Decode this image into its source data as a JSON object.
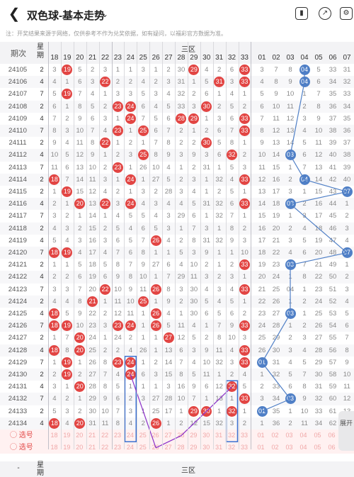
{
  "header": {
    "title": "双色球-基本走势",
    "back_icon": "chevron-left-icon",
    "dropdown_icon": "chevron-down-icon",
    "icons": [
      "phone-icon",
      "share-icon",
      "settings-icon"
    ]
  },
  "notice": "注：开奖结果来源于网络，仅供参考不作为兑奖依据，如有疑问，以福彩官方数据为准。",
  "table_header": {
    "issue": "期次",
    "week": "星期",
    "zone_label": "三区",
    "cols_red": [
      "18",
      "19",
      "20",
      "21",
      "22",
      "23",
      "24",
      "25",
      "26",
      "27",
      "28",
      "29",
      "30",
      "31",
      "32",
      "33"
    ],
    "cols_blue": [
      "01",
      "02",
      "03",
      "04",
      "05",
      "06",
      "07"
    ]
  },
  "rows": [
    {
      "issue": "24105",
      "week": "2",
      "cells": [
        "3",
        "19",
        "5",
        "2",
        "3",
        "1",
        "1",
        "3",
        "1",
        "2",
        "30",
        "29",
        "4",
        "2",
        "6",
        "33"
      ],
      "blue": [
        "3",
        "7",
        "8",
        "04",
        "5",
        "33",
        "31"
      ]
    },
    {
      "issue": "24106",
      "week": "4",
      "cells": [
        "4",
        "1",
        "6",
        "3",
        "22",
        "2",
        "2",
        "4",
        "2",
        "3",
        "31",
        "1",
        "5",
        "31",
        "3",
        "33"
      ],
      "blue": [
        "4",
        "8",
        "9",
        "04",
        "6",
        "34",
        "32"
      ]
    },
    {
      "issue": "24107",
      "week": "7",
      "cells": [
        "5",
        "19",
        "7",
        "4",
        "1",
        "3",
        "3",
        "5",
        "3",
        "4",
        "32",
        "2",
        "6",
        "1",
        "4",
        "1"
      ],
      "blue": [
        "5",
        "9",
        "10",
        "1",
        "7",
        "35",
        "33"
      ]
    },
    {
      "issue": "24108",
      "week": "2",
      "cells": [
        "6",
        "1",
        "8",
        "5",
        "2",
        "23",
        "24",
        "6",
        "4",
        "5",
        "33",
        "3",
        "30",
        "2",
        "5",
        "2"
      ],
      "blue": [
        "6",
        "10",
        "11",
        "2",
        "8",
        "36",
        "34"
      ]
    },
    {
      "issue": "24109",
      "week": "4",
      "cells": [
        "7",
        "2",
        "9",
        "6",
        "3",
        "1",
        "24",
        "7",
        "5",
        "6",
        "28",
        "29",
        "1",
        "3",
        "6",
        "33"
      ],
      "blue": [
        "7",
        "11",
        "12",
        "3",
        "9",
        "37",
        "35"
      ]
    },
    {
      "issue": "24110",
      "week": "7",
      "cells": [
        "8",
        "3",
        "10",
        "7",
        "4",
        "23",
        "1",
        "25",
        "6",
        "7",
        "2",
        "1",
        "2",
        "6",
        "7",
        "33"
      ],
      "blue": [
        "8",
        "12",
        "13",
        "4",
        "10",
        "38",
        "36"
      ]
    },
    {
      "issue": "24111",
      "week": "2",
      "cells": [
        "9",
        "4",
        "11",
        "8",
        "22",
        "1",
        "2",
        "1",
        "7",
        "8",
        "2",
        "2",
        "30",
        "5",
        "8",
        "1"
      ],
      "blue": [
        "9",
        "13",
        "14",
        "5",
        "11",
        "39",
        "37"
      ]
    },
    {
      "issue": "24112",
      "week": "4",
      "cells": [
        "10",
        "5",
        "12",
        "9",
        "1",
        "2",
        "3",
        "25",
        "8",
        "9",
        "3",
        "9",
        "3",
        "6",
        "32",
        "2"
      ],
      "blue": [
        "10",
        "14",
        "03",
        "6",
        "12",
        "40",
        "38"
      ]
    },
    {
      "issue": "24113",
      "week": "7",
      "cells": [
        "11",
        "6",
        "13",
        "10",
        "2",
        "23",
        "1",
        "26",
        "10",
        "4",
        "1",
        "2",
        "31",
        "1",
        "5",
        "3"
      ],
      "blue": [
        "11",
        "15",
        "1",
        "7",
        "13",
        "41",
        "39"
      ]
    },
    {
      "issue": "24114",
      "week": "2",
      "cells": [
        "18",
        "7",
        "14",
        "11",
        "3",
        "1",
        "24",
        "1",
        "27",
        "5",
        "2",
        "3",
        "1",
        "32",
        "4",
        "33"
      ],
      "blue": [
        "12",
        "16",
        "2",
        "04",
        "14",
        "42",
        "40"
      ]
    },
    {
      "issue": "24115",
      "week": "2",
      "cells": [
        "1",
        "19",
        "15",
        "12",
        "4",
        "2",
        "1",
        "3",
        "2",
        "28",
        "3",
        "4",
        "1",
        "2",
        "5",
        "1"
      ],
      "blue": [
        "13",
        "17",
        "3",
        "1",
        "15",
        "43",
        "07"
      ]
    },
    {
      "issue": "24116",
      "week": "4",
      "cells": [
        "2",
        "1",
        "20",
        "13",
        "22",
        "3",
        "24",
        "4",
        "3",
        "4",
        "4",
        "5",
        "31",
        "32",
        "6",
        "33"
      ],
      "blue": [
        "14",
        "18",
        "03",
        "2",
        "16",
        "44",
        "1"
      ]
    },
    {
      "issue": "24117",
      "week": "7",
      "cells": [
        "3",
        "2",
        "1",
        "14",
        "1",
        "4",
        "5",
        "5",
        "4",
        "3",
        "29",
        "6",
        "1",
        "32",
        "7",
        "1"
      ],
      "blue": [
        "15",
        "19",
        "1",
        "3",
        "17",
        "45",
        "2"
      ]
    },
    {
      "issue": "24118",
      "week": "2",
      "cells": [
        "4",
        "3",
        "2",
        "15",
        "2",
        "5",
        "4",
        "6",
        "5",
        "3",
        "1",
        "7",
        "3",
        "1",
        "8",
        "2"
      ],
      "blue": [
        "16",
        "20",
        "2",
        "4",
        "18",
        "46",
        "3"
      ]
    },
    {
      "issue": "24119",
      "week": "4",
      "cells": [
        "5",
        "4",
        "3",
        "16",
        "3",
        "6",
        "5",
        "7",
        "26",
        "4",
        "2",
        "8",
        "31",
        "32",
        "9",
        "3"
      ],
      "blue": [
        "17",
        "21",
        "3",
        "5",
        "19",
        "47",
        "4"
      ]
    },
    {
      "issue": "24120",
      "week": "7",
      "cells": [
        "18",
        "19",
        "4",
        "17",
        "4",
        "7",
        "6",
        "8",
        "1",
        "1",
        "5",
        "3",
        "9",
        "1",
        "1",
        "10"
      ],
      "blue": [
        "18",
        "22",
        "4",
        "6",
        "20",
        "48",
        "07"
      ]
    },
    {
      "issue": "24121",
      "week": "2",
      "cells": [
        "1",
        "1",
        "5",
        "18",
        "5",
        "8",
        "7",
        "9",
        "27",
        "6",
        "4",
        "10",
        "2",
        "1",
        "2",
        "33"
      ],
      "blue": [
        "19",
        "23",
        "03",
        "7",
        "21",
        "49",
        "1"
      ]
    },
    {
      "issue": "24122",
      "week": "4",
      "cells": [
        "2",
        "2",
        "6",
        "19",
        "6",
        "9",
        "8",
        "10",
        "1",
        "7",
        "29",
        "11",
        "3",
        "2",
        "3",
        "1"
      ],
      "blue": [
        "20",
        "24",
        "1",
        "8",
        "22",
        "50",
        "2"
      ]
    },
    {
      "issue": "24123",
      "week": "7",
      "cells": [
        "3",
        "3",
        "7",
        "20",
        "22",
        "10",
        "9",
        "11",
        "26",
        "8",
        "3",
        "30",
        "4",
        "3",
        "4",
        "33"
      ],
      "blue": [
        "21",
        "25",
        "04",
        "1",
        "23",
        "51",
        "3"
      ]
    },
    {
      "issue": "24124",
      "week": "2",
      "cells": [
        "4",
        "4",
        "8",
        "21",
        "1",
        "11",
        "10",
        "25",
        "1",
        "9",
        "2",
        "30",
        "5",
        "4",
        "5",
        "1"
      ],
      "blue": [
        "22",
        "26",
        "1",
        "2",
        "24",
        "52",
        "4"
      ]
    },
    {
      "issue": "24125",
      "week": "4",
      "cells": [
        "18",
        "5",
        "9",
        "22",
        "2",
        "12",
        "11",
        "1",
        "26",
        "4",
        "1",
        "30",
        "6",
        "5",
        "6",
        "2"
      ],
      "blue": [
        "23",
        "27",
        "03",
        "1",
        "25",
        "53",
        "5"
      ]
    },
    {
      "issue": "24126",
      "week": "7",
      "cells": [
        "18",
        "19",
        "10",
        "23",
        "3",
        "23",
        "24",
        "1",
        "26",
        "5",
        "11",
        "4",
        "1",
        "7",
        "9",
        "33"
      ],
      "blue": [
        "24",
        "28",
        "1",
        "2",
        "26",
        "54",
        "6"
      ]
    },
    {
      "issue": "24127",
      "week": "2",
      "cells": [
        "1",
        "7",
        "20",
        "24",
        "1",
        "24",
        "2",
        "1",
        "1",
        "27",
        "12",
        "5",
        "2",
        "8",
        "10",
        "3"
      ],
      "blue": [
        "25",
        "29",
        "2",
        "3",
        "27",
        "55",
        "7"
      ]
    },
    {
      "issue": "24128",
      "week": "4",
      "cells": [
        "18",
        "8",
        "20",
        "25",
        "2",
        "2",
        "4",
        "26",
        "1",
        "13",
        "6",
        "3",
        "9",
        "11",
        "4",
        "33"
      ],
      "blue": [
        "26",
        "30",
        "3",
        "4",
        "28",
        "56",
        "8"
      ]
    },
    {
      "issue": "24129",
      "week": "7",
      "cells": [
        "1",
        "19",
        "1",
        "26",
        "8",
        "23",
        "24",
        "1",
        "2",
        "14",
        "7",
        "4",
        "10",
        "32",
        "3",
        "33"
      ],
      "blue": [
        "01",
        "31",
        "4",
        "5",
        "29",
        "57",
        "9"
      ]
    },
    {
      "issue": "24130",
      "week": "2",
      "cells": [
        "2",
        "19",
        "2",
        "27",
        "7",
        "4",
        "24",
        "6",
        "3",
        "15",
        "8",
        "5",
        "11",
        "1",
        "2",
        "4"
      ],
      "blue": [
        "1",
        "32",
        "5",
        "7",
        "30",
        "58",
        "10"
      ]
    },
    {
      "issue": "24131",
      "week": "4",
      "cells": [
        "3",
        "1",
        "20",
        "28",
        "8",
        "5",
        "1",
        "1",
        "1",
        "3",
        "16",
        "9",
        "6",
        "12",
        "32",
        "5"
      ],
      "blue": [
        "2",
        "33",
        "6",
        "8",
        "31",
        "59",
        "11"
      ]
    },
    {
      "issue": "24132",
      "week": "7",
      "cells": [
        "4",
        "2",
        "1",
        "29",
        "9",
        "6",
        "2",
        "3",
        "27",
        "28",
        "10",
        "7",
        "1",
        "13",
        "1",
        "33"
      ],
      "blue": [
        "3",
        "34",
        "03",
        "9",
        "32",
        "60",
        "12"
      ]
    },
    {
      "issue": "24133",
      "week": "2",
      "cells": [
        "5",
        "3",
        "2",
        "30",
        "10",
        "7",
        "3",
        "1",
        "25",
        "17",
        "1",
        "29",
        "30",
        "1",
        "32",
        "1"
      ],
      "blue": [
        "01",
        "35",
        "1",
        "10",
        "33",
        "61",
        "13"
      ]
    },
    {
      "issue": "24134",
      "week": "4",
      "cells": [
        "18",
        "4",
        "20",
        "31",
        "11",
        "8",
        "4",
        "2",
        "26",
        "1",
        "2",
        "12",
        "15",
        "32",
        "3",
        "2"
      ],
      "blue": [
        "1",
        "36",
        "2",
        "11",
        "34",
        "62",
        "14"
      ]
    }
  ],
  "pick_rows": [
    {
      "label": "选号",
      "nums": [
        "18",
        "19",
        "20",
        "21",
        "22",
        "23",
        "24",
        "25",
        "26",
        "27",
        "28",
        "29",
        "30",
        "31",
        "32",
        "33"
      ],
      "blue": [
        "01",
        "02",
        "03",
        "04",
        "05",
        "06",
        "07"
      ]
    },
    {
      "label": "选号",
      "nums": [
        "18",
        "19",
        "20",
        "21",
        "22",
        "23",
        "24",
        "25",
        "26",
        "27",
        "28",
        "29",
        "30",
        "31",
        "32",
        "33"
      ],
      "blue": [
        "01",
        "02",
        "03",
        "04",
        "05",
        "06",
        "07"
      ]
    }
  ],
  "footer": {
    "issue": "-",
    "week": "星期",
    "zone_label": "三区"
  },
  "fab_label": "展开",
  "colors": {
    "red_ball": "#e24543",
    "dark_ball": "#8a1717",
    "blue_ball": "#4f7fc6",
    "highlight_box": "#3a6fd0",
    "purple_line": "#8b2fc9"
  }
}
